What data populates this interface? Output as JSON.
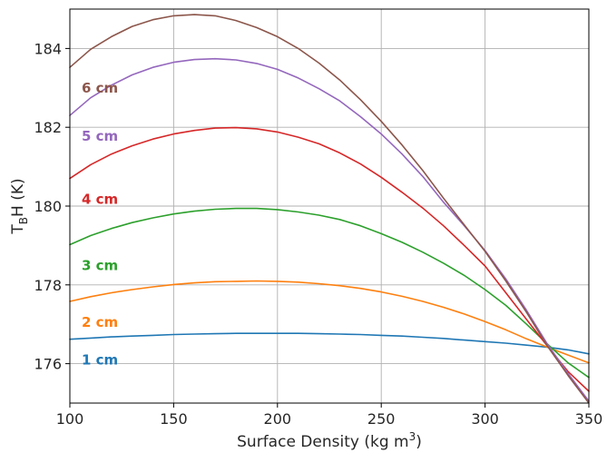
{
  "chart_data": {
    "type": "line",
    "title": "",
    "xlabel": "Surface Density (kg m",
    "xlabel_sup": "3",
    "xlabel_end": ")",
    "ylabel": "T",
    "ylabel_sub": "B",
    "ylabel_end": "H (K)",
    "xlim": [
      100,
      350
    ],
    "ylim": [
      175,
      185
    ],
    "xticks": [
      100,
      150,
      200,
      250,
      300,
      350
    ],
    "yticks": [
      176,
      178,
      180,
      182,
      184
    ],
    "grid": true,
    "legend": "inline labels",
    "x": [
      100,
      110,
      120,
      130,
      140,
      150,
      160,
      170,
      180,
      190,
      200,
      210,
      220,
      230,
      240,
      250,
      260,
      270,
      280,
      290,
      300,
      310,
      320,
      330,
      340,
      350
    ],
    "series": [
      {
        "name": "1 cm",
        "color": "#1f77b4",
        "values": [
          176.62,
          176.65,
          176.68,
          176.7,
          176.72,
          176.74,
          176.75,
          176.76,
          176.77,
          176.77,
          176.77,
          176.77,
          176.76,
          176.75,
          176.74,
          176.72,
          176.7,
          176.67,
          176.64,
          176.6,
          176.56,
          176.52,
          176.47,
          176.42,
          176.35,
          176.25
        ]
      },
      {
        "name": "2 cm",
        "color": "#ff7f0e",
        "values": [
          177.58,
          177.7,
          177.8,
          177.88,
          177.95,
          178.01,
          178.05,
          178.08,
          178.09,
          178.1,
          178.09,
          178.07,
          178.03,
          177.98,
          177.91,
          177.82,
          177.71,
          177.58,
          177.43,
          177.26,
          177.07,
          176.86,
          176.63,
          176.42,
          176.22,
          176.02
        ]
      },
      {
        "name": "3 cm",
        "color": "#2ca02c",
        "values": [
          179.02,
          179.25,
          179.43,
          179.58,
          179.7,
          179.8,
          179.87,
          179.92,
          179.94,
          179.94,
          179.91,
          179.85,
          179.77,
          179.66,
          179.5,
          179.3,
          179.08,
          178.83,
          178.55,
          178.24,
          177.88,
          177.48,
          177.0,
          176.5,
          176.02,
          175.65
        ]
      },
      {
        "name": "4 cm",
        "color": "#d62728",
        "values": [
          180.7,
          181.05,
          181.32,
          181.53,
          181.7,
          181.83,
          181.92,
          181.98,
          181.99,
          181.96,
          181.88,
          181.75,
          181.58,
          181.35,
          181.07,
          180.73,
          180.35,
          179.95,
          179.5,
          179.0,
          178.48,
          177.8,
          177.12,
          176.45,
          175.8,
          175.3
        ]
      },
      {
        "name": "5 cm",
        "color": "#9467bd",
        "values": [
          182.3,
          182.75,
          183.07,
          183.33,
          183.52,
          183.65,
          183.72,
          183.74,
          183.71,
          183.62,
          183.47,
          183.25,
          182.98,
          182.67,
          182.27,
          181.83,
          181.32,
          180.75,
          180.1,
          179.5,
          178.87,
          178.15,
          177.35,
          176.5,
          175.75,
          175.05
        ]
      },
      {
        "name": "6 cm",
        "color": "#8c564b",
        "values": [
          183.52,
          183.98,
          184.3,
          184.56,
          184.73,
          184.83,
          184.86,
          184.83,
          184.71,
          184.53,
          184.3,
          184.0,
          183.63,
          183.2,
          182.7,
          182.15,
          181.55,
          180.9,
          180.2,
          179.52,
          178.85,
          178.1,
          177.3,
          176.45,
          175.7,
          175.0
        ]
      }
    ]
  }
}
